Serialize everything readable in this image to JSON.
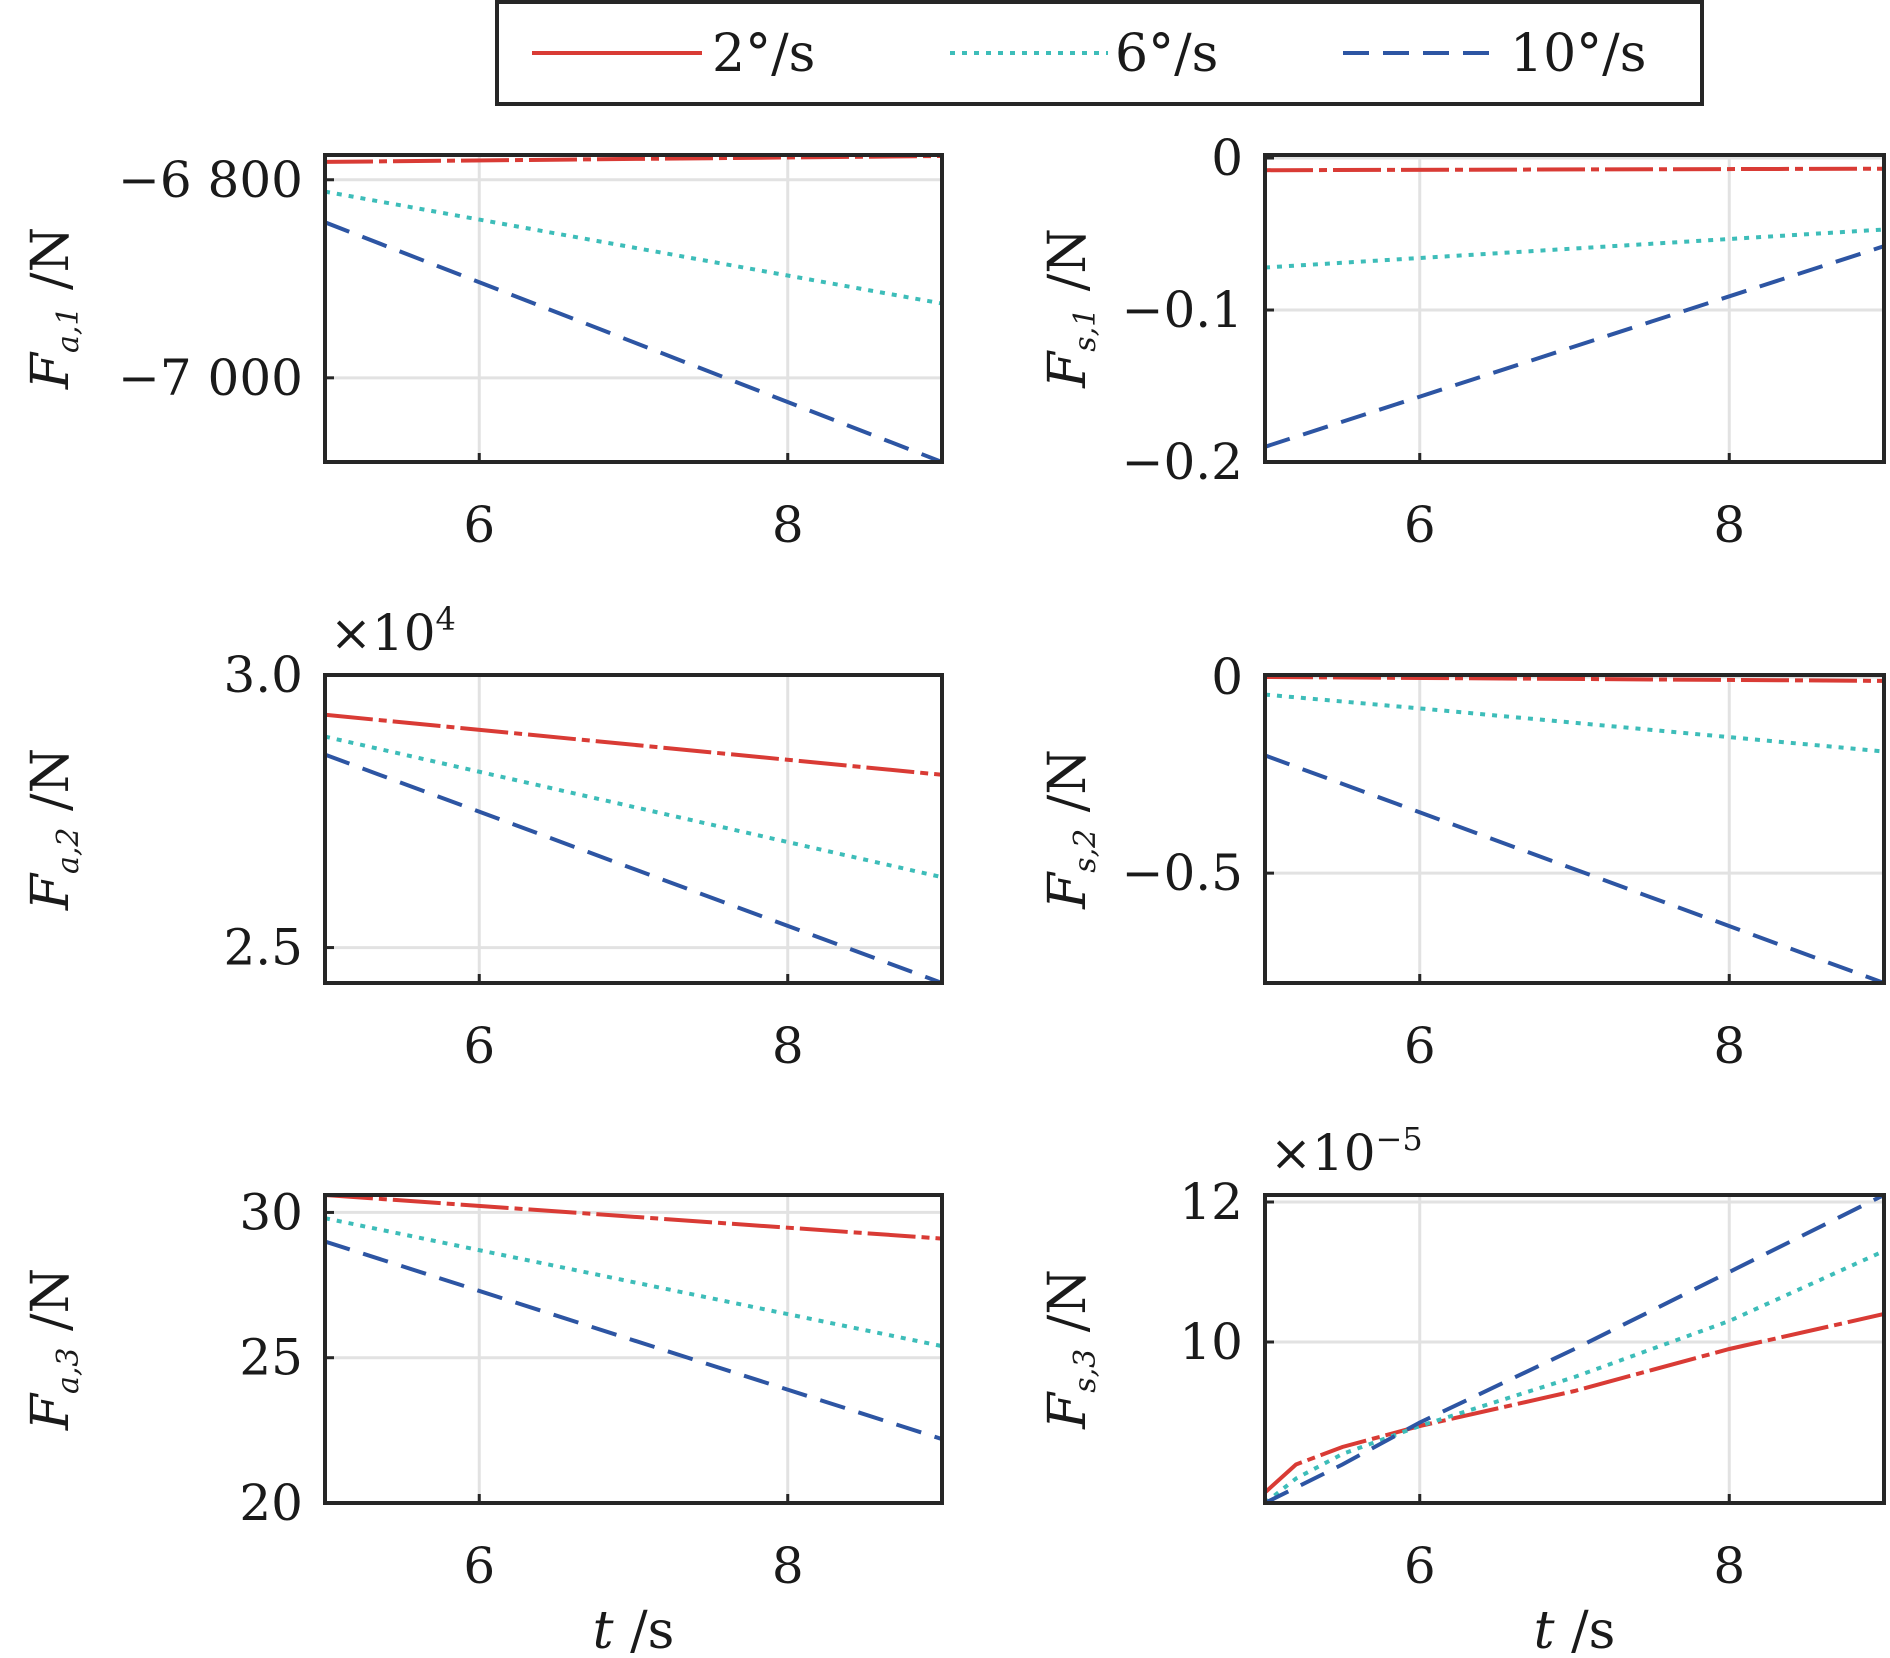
{
  "legend": {
    "entries": [
      {
        "label": "2°/s",
        "color": "#d93b35",
        "dash": "solid"
      },
      {
        "label": "6°/s",
        "color": "#3dbdb9",
        "dash": "dotted"
      },
      {
        "label": "10°/s",
        "color": "#2d55a3",
        "dash": "dashed"
      }
    ]
  },
  "chart_data": [
    {
      "type": "line",
      "ylabel_var": "F",
      "ylabel_sub": "a,1",
      "ylabel_unit": " /N",
      "xlabel": "",
      "xlim": [
        5,
        9
      ],
      "ylim": [
        -7085,
        -6775
      ],
      "xticks": [
        6,
        8
      ],
      "xtick_labels": [
        "6",
        "8"
      ],
      "yticks": [
        -6800,
        -7000
      ],
      "ytick_labels": [
        "−6 800",
        "−7 000"
      ],
      "multiplier": "",
      "multiplier_exp": "",
      "series": [
        {
          "name": "2°/s",
          "x": [
            5,
            9
          ],
          "y": [
            -6782,
            -6776
          ]
        },
        {
          "name": "6°/s",
          "x": [
            5,
            9
          ],
          "y": [
            -6812,
            -6925
          ]
        },
        {
          "name": "10°/s",
          "x": [
            5,
            9
          ],
          "y": [
            -6843,
            -7085
          ]
        }
      ]
    },
    {
      "type": "line",
      "ylabel_var": "F",
      "ylabel_sub": "s,1",
      "ylabel_unit": " /N",
      "xlabel": "",
      "xlim": [
        5,
        9
      ],
      "ylim": [
        -0.2,
        0.002
      ],
      "xticks": [
        6,
        8
      ],
      "xtick_labels": [
        "6",
        "8"
      ],
      "yticks": [
        0,
        -0.1,
        -0.2
      ],
      "ytick_labels": [
        "0",
        "−0.1",
        "−0.2"
      ],
      "multiplier": "",
      "multiplier_exp": "",
      "series": [
        {
          "name": "2°/s",
          "x": [
            5,
            9
          ],
          "y": [
            -0.008,
            -0.007
          ]
        },
        {
          "name": "6°/s",
          "x": [
            5,
            9
          ],
          "y": [
            -0.072,
            -0.047
          ]
        },
        {
          "name": "10°/s",
          "x": [
            5,
            9
          ],
          "y": [
            -0.19,
            -0.058
          ]
        }
      ]
    },
    {
      "type": "line",
      "ylabel_var": "F",
      "ylabel_sub": "a,2",
      "ylabel_unit": " /N",
      "xlabel": "",
      "xlim": [
        5,
        9
      ],
      "ylim": [
        2.435,
        3.0
      ],
      "xticks": [
        6,
        8
      ],
      "xtick_labels": [
        "6",
        "8"
      ],
      "yticks": [
        3.0,
        2.5
      ],
      "ytick_labels": [
        "3.0",
        "2.5"
      ],
      "multiplier": "×10",
      "multiplier_exp": "4",
      "series": [
        {
          "name": "2°/s",
          "x": [
            5,
            9
          ],
          "y": [
            2.927,
            2.817
          ]
        },
        {
          "name": "6°/s",
          "x": [
            5,
            9
          ],
          "y": [
            2.887,
            2.629
          ]
        },
        {
          "name": "10°/s",
          "x": [
            5,
            9
          ],
          "y": [
            2.854,
            2.435
          ]
        }
      ]
    },
    {
      "type": "line",
      "ylabel_var": "F",
      "ylabel_sub": "s,2",
      "ylabel_unit": " /N",
      "xlabel": "",
      "xlim": [
        5,
        9
      ],
      "ylim": [
        -0.78,
        0.005
      ],
      "xticks": [
        6,
        8
      ],
      "xtick_labels": [
        "6",
        "8"
      ],
      "yticks": [
        0,
        -0.5
      ],
      "ytick_labels": [
        "0",
        "−0.5"
      ],
      "multiplier": "",
      "multiplier_exp": "",
      "series": [
        {
          "name": "2°/s",
          "x": [
            5,
            9
          ],
          "y": [
            0.0,
            -0.01
          ]
        },
        {
          "name": "6°/s",
          "x": [
            5,
            6,
            9
          ],
          "y": [
            -0.045,
            -0.08,
            -0.19
          ]
        },
        {
          "name": "10°/s",
          "x": [
            5,
            9
          ],
          "y": [
            -0.2,
            -0.78
          ]
        }
      ]
    },
    {
      "type": "line",
      "ylabel_var": "F",
      "ylabel_sub": "a,3",
      "ylabel_unit": " /N",
      "xlabel": "t /s",
      "xlim": [
        5,
        9
      ],
      "ylim": [
        20,
        30.6
      ],
      "xticks": [
        6,
        8
      ],
      "xtick_labels": [
        "6",
        "8"
      ],
      "yticks": [
        30,
        25,
        20
      ],
      "ytick_labels": [
        "30",
        "25",
        "20"
      ],
      "multiplier": "",
      "multiplier_exp": "",
      "series": [
        {
          "name": "2°/s",
          "x": [
            5,
            9
          ],
          "y": [
            30.6,
            29.1
          ]
        },
        {
          "name": "6°/s",
          "x": [
            5,
            9
          ],
          "y": [
            29.8,
            25.4
          ]
        },
        {
          "name": "10°/s",
          "x": [
            5,
            9
          ],
          "y": [
            29.0,
            22.2
          ]
        }
      ]
    },
    {
      "type": "line",
      "ylabel_var": "F",
      "ylabel_sub": "s,3",
      "ylabel_unit": " /N",
      "xlabel": "t /s",
      "xlim": [
        5,
        9
      ],
      "ylim": [
        7.7,
        12.1
      ],
      "xticks": [
        6,
        8
      ],
      "xtick_labels": [
        "6",
        "8"
      ],
      "yticks": [
        12,
        10
      ],
      "ytick_labels": [
        "12",
        "10"
      ],
      "multiplier": "×10",
      "multiplier_exp": "−5",
      "series": [
        {
          "name": "2°/s",
          "x": [
            5,
            5.2,
            5.5,
            6,
            7,
            8,
            9
          ],
          "y": [
            7.85,
            8.25,
            8.5,
            8.8,
            9.3,
            9.9,
            10.4
          ]
        },
        {
          "name": "6°/s",
          "x": [
            5,
            5.2,
            5.5,
            6,
            7,
            8,
            9
          ],
          "y": [
            7.7,
            8.05,
            8.4,
            8.8,
            9.5,
            10.3,
            11.3
          ]
        },
        {
          "name": "10°/s",
          "x": [
            5,
            5.5,
            6,
            7,
            8,
            9
          ],
          "y": [
            7.7,
            8.25,
            8.85,
            9.9,
            11.0,
            12.1
          ]
        }
      ]
    }
  ]
}
